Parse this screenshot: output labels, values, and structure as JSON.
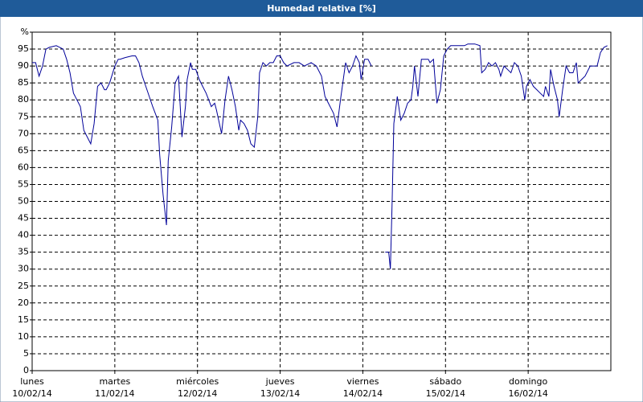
{
  "chart_data": {
    "type": "line",
    "title": "Humedad relativa [%]",
    "series": [
      {
        "name": "Humedad relativa",
        "color": "#000099",
        "x": [
          0,
          1,
          2,
          3,
          4,
          5,
          7,
          9,
          10,
          11,
          12,
          13,
          14,
          15,
          16,
          17,
          18,
          19,
          20,
          21,
          21.5,
          22.5,
          24,
          25,
          25.5,
          27,
          29,
          30,
          31,
          32,
          33,
          34,
          35,
          36.5,
          37,
          38,
          39,
          39.5,
          40.5,
          41.5,
          42.5,
          43.5,
          44.5,
          45,
          46,
          46.5,
          47.5,
          48.5,
          49.5,
          50.5,
          52,
          53,
          53.5,
          55,
          56,
          57,
          58,
          59,
          60,
          60.5,
          61.5,
          62.5,
          63.5,
          64.5,
          65.5,
          66,
          67,
          68,
          69,
          70,
          71,
          72,
          73,
          74,
          76,
          77.5,
          79,
          81,
          82.5,
          84,
          85,
          86,
          87,
          87.5,
          88.5,
          89.5,
          91,
          92,
          93,
          94,
          95,
          95.5,
          96.5,
          97.5,
          98.5,
          100,
          102.5,
          103.5,
          104,
          104.5,
          105,
          106,
          107,
          108,
          109,
          110,
          110.5,
          111,
          112,
          113,
          114,
          115,
          115.5,
          116.5,
          117.5,
          118.5,
          119.5,
          120.5,
          121.5,
          123.5,
          125.5,
          126.5,
          128.5,
          130,
          130.5,
          131.5,
          132.5,
          133.5,
          134.5,
          135.5,
          136,
          137,
          138,
          139,
          140,
          141,
          142,
          143,
          143.5,
          144.5,
          145.5,
          146.5,
          147.5,
          148.5,
          149,
          150,
          150.5,
          151.5,
          152.5,
          153,
          154,
          155,
          156,
          157,
          158,
          158.5,
          159.5,
          160.5,
          162,
          163,
          164,
          165,
          166,
          167
        ],
        "values": [
          91,
          91,
          87,
          90,
          95,
          95.5,
          96,
          95,
          92,
          88,
          82,
          80,
          78,
          71,
          69,
          67,
          73,
          84,
          85,
          83,
          83,
          85,
          90,
          92,
          92,
          92.5,
          93,
          93,
          91,
          87,
          84,
          81,
          78,
          74,
          64,
          52,
          43,
          62,
          72,
          85,
          87,
          69,
          78,
          86,
          91,
          89,
          89,
          86,
          84,
          82,
          78,
          79,
          77,
          70,
          80,
          87,
          83,
          78,
          71,
          74,
          73,
          71,
          67,
          66,
          75,
          88,
          91,
          90,
          91,
          91,
          93,
          93,
          91,
          90,
          91,
          91,
          90,
          91,
          90,
          87,
          81,
          79,
          77,
          76,
          72,
          80,
          91,
          88,
          90,
          93,
          91,
          86,
          92,
          92,
          90,
          null,
          35,
          35,
          30,
          50,
          73,
          81,
          74,
          76,
          79,
          80,
          84,
          90,
          81,
          92,
          92,
          92,
          91,
          92,
          79,
          83,
          93,
          95,
          96,
          96,
          96,
          96.5,
          96.5,
          96,
          88,
          89,
          91,
          90,
          91,
          89,
          87,
          90,
          89,
          88,
          91,
          90,
          87,
          80,
          84,
          86,
          84,
          83,
          82,
          81,
          84,
          81,
          89,
          84,
          80,
          75,
          83,
          90,
          88,
          88,
          91,
          85,
          86,
          87,
          90,
          90,
          90,
          94,
          95.5,
          96
        ]
      }
    ],
    "xlim": [
      0,
      168
    ],
    "xticks": [
      {
        "value": 0,
        "label": "lunes"
      },
      {
        "value": 24,
        "label": "martes"
      },
      {
        "value": 48,
        "label": "miércoles"
      },
      {
        "value": 72,
        "label": "jueves"
      },
      {
        "value": 96,
        "label": "viernes"
      },
      {
        "value": 120,
        "label": "sábado"
      },
      {
        "value": 144,
        "label": "domingo"
      }
    ],
    "xtick_dates": [
      "10/02/14",
      "11/02/14",
      "12/02/14",
      "13/02/14",
      "14/02/14",
      "15/02/14",
      "16/02/14"
    ],
    "ylim": [
      0,
      100
    ],
    "yticks": [
      0,
      5,
      10,
      15,
      20,
      25,
      30,
      35,
      40,
      45,
      50,
      55,
      60,
      65,
      70,
      75,
      80,
      85,
      90,
      95,
      {
        "value": 100,
        "label": "%"
      }
    ],
    "grid": true
  }
}
